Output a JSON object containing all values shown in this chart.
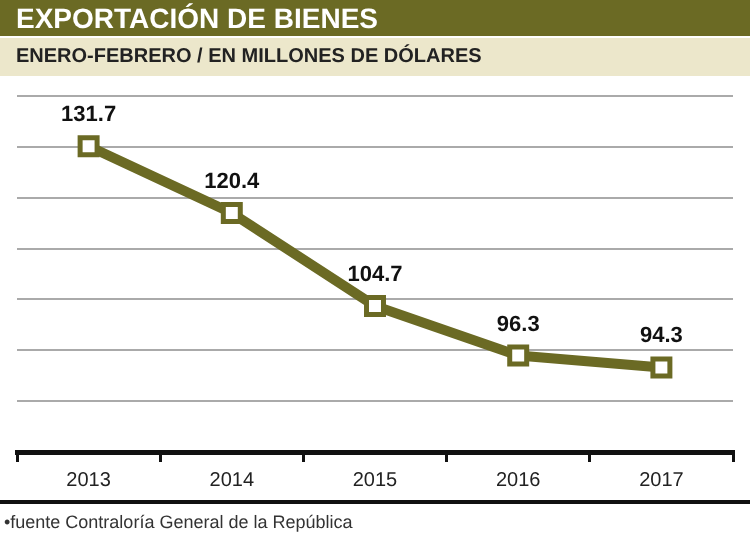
{
  "chart_data": {
    "type": "line",
    "title": "EXPORTACIÓN DE BIENES",
    "subtitle": "ENERO-FEBRERO / EN MILLONES DE DÓLARES",
    "categories": [
      "2013",
      "2014",
      "2015",
      "2016",
      "2017"
    ],
    "series": [
      {
        "color": "#6b6a24",
        "values": [
          131.7,
          120.4,
          104.7,
          96.3,
          94.3
        ]
      }
    ],
    "ylim": [
      80,
      140.2
    ],
    "yticks": [
      {
        "value": 88.6,
        "label": null
      },
      {
        "value": 97.2,
        "label": null
      },
      {
        "value": 105.8,
        "label": null
      },
      {
        "value": 114.4,
        "label": null
      },
      {
        "value": 123,
        "label": null
      },
      {
        "value": 131.6,
        "label": null
      },
      {
        "value": 140.2,
        "label": null
      }
    ],
    "grid": "y",
    "marker": "square",
    "line_style": "solid",
    "data_labels": true,
    "legend": false,
    "annotations": [
      "•fuente Contraloría General de la República"
    ]
  }
}
